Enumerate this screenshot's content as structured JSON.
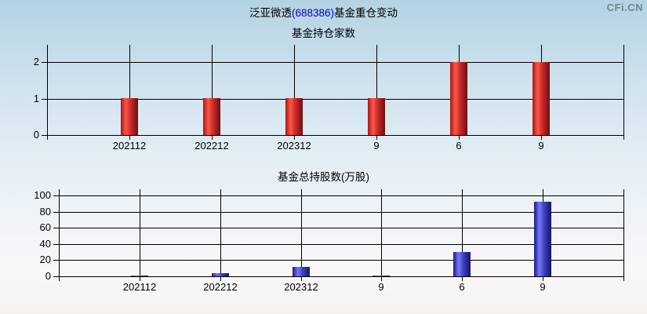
{
  "header": {
    "title_prefix": "泛亚微透",
    "title_code": "(688386)",
    "title_suffix": "基金重仓变动",
    "watermark": "CFi.CN"
  },
  "colors": {
    "title_code_blue": "#0000cc",
    "bar_red": "#d63030",
    "bar_blue": "#4646cc",
    "grid_line": "#000000",
    "watermark_gray": "#75858f",
    "background_top": "#b3d3e4",
    "background_bottom": "#f6f1ee"
  },
  "chart_data": [
    {
      "type": "bar",
      "title": "基金持仓家数",
      "series_color": "red",
      "categories": [
        "202112",
        "202212",
        "202312",
        "9",
        "6",
        "9"
      ],
      "values": [
        1,
        1,
        1,
        1,
        2,
        2
      ],
      "xlabel": "",
      "ylabel": "",
      "ylim": [
        0,
        2
      ],
      "yticks": [
        0,
        1,
        2
      ],
      "grid": true,
      "legend": "none"
    },
    {
      "type": "bar",
      "title": "基金总持股数(万股)",
      "series_color": "blue",
      "categories": [
        "202112",
        "202212",
        "202312",
        "9",
        "6",
        "9"
      ],
      "values": [
        1,
        4,
        12,
        1,
        30,
        92
      ],
      "xlabel": "",
      "ylabel": "",
      "ylim": [
        0,
        100
      ],
      "yticks": [
        0,
        20,
        40,
        60,
        80,
        100
      ],
      "grid": true,
      "legend": "none"
    }
  ]
}
